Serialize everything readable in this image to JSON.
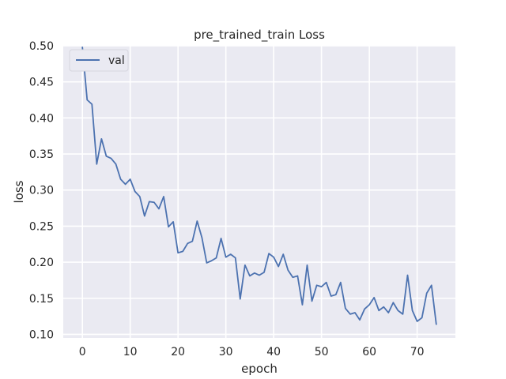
{
  "chart_data": {
    "type": "line",
    "title": "pre_trained_train Loss",
    "xlabel": "epoch",
    "ylabel": "loss",
    "xlim": [
      -4,
      78
    ],
    "ylim": [
      0.095,
      0.5
    ],
    "xticks": [
      0,
      10,
      20,
      30,
      40,
      50,
      60,
      70
    ],
    "yticks": [
      0.1,
      0.15,
      0.2,
      0.25,
      0.3,
      0.35,
      0.4,
      0.45,
      0.5
    ],
    "xtick_labels": [
      "0",
      "10",
      "20",
      "30",
      "40",
      "50",
      "60",
      "70"
    ],
    "ytick_labels": [
      "0.10",
      "0.15",
      "0.20",
      "0.25",
      "0.30",
      "0.35",
      "0.40",
      "0.45",
      "0.50"
    ],
    "grid": true,
    "legend_position": "top-left",
    "background_color": "#eaeaf2",
    "line_color": "#4c72b0",
    "series": [
      {
        "name": "val",
        "x": [
          0,
          1,
          2,
          3,
          4,
          5,
          6,
          7,
          8,
          9,
          10,
          11,
          12,
          13,
          14,
          15,
          16,
          17,
          18,
          19,
          20,
          21,
          22,
          23,
          24,
          25,
          26,
          27,
          28,
          29,
          30,
          31,
          32,
          33,
          34,
          35,
          36,
          37,
          38,
          39,
          40,
          41,
          42,
          43,
          44,
          45,
          46,
          47,
          48,
          49,
          50,
          51,
          52,
          53,
          54,
          55,
          56,
          57,
          58,
          59,
          60,
          61,
          62,
          63,
          64,
          65,
          66,
          67,
          68,
          69,
          70,
          71,
          72,
          73,
          74
        ],
        "values": [
          0.498,
          0.425,
          0.419,
          0.336,
          0.371,
          0.347,
          0.344,
          0.336,
          0.315,
          0.308,
          0.315,
          0.298,
          0.291,
          0.264,
          0.284,
          0.283,
          0.274,
          0.291,
          0.249,
          0.256,
          0.213,
          0.215,
          0.226,
          0.229,
          0.257,
          0.234,
          0.199,
          0.202,
          0.206,
          0.233,
          0.207,
          0.211,
          0.206,
          0.149,
          0.196,
          0.181,
          0.185,
          0.182,
          0.186,
          0.212,
          0.207,
          0.194,
          0.211,
          0.189,
          0.179,
          0.181,
          0.141,
          0.196,
          0.146,
          0.168,
          0.166,
          0.172,
          0.153,
          0.155,
          0.172,
          0.136,
          0.128,
          0.13,
          0.12,
          0.135,
          0.141,
          0.151,
          0.133,
          0.138,
          0.13,
          0.144,
          0.133,
          0.128,
          0.182,
          0.133,
          0.118,
          0.123,
          0.157,
          0.168,
          0.114
        ]
      }
    ]
  }
}
